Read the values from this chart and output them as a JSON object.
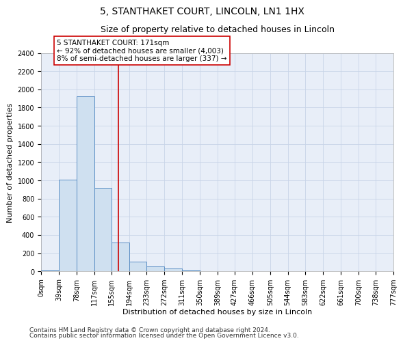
{
  "title": "5, STANTHAKET COURT, LINCOLN, LN1 1HX",
  "subtitle": "Size of property relative to detached houses in Lincoln",
  "xlabel": "Distribution of detached houses by size in Lincoln",
  "ylabel": "Number of detached properties",
  "bar_left_edges": [
    0,
    39,
    78,
    117,
    155,
    194,
    233,
    272,
    311,
    350,
    389,
    427,
    466,
    505,
    544,
    583,
    622,
    661,
    700,
    738
  ],
  "bar_heights": [
    20,
    1010,
    1920,
    920,
    315,
    105,
    55,
    35,
    20,
    0,
    0,
    0,
    0,
    0,
    0,
    0,
    0,
    0,
    0,
    0
  ],
  "bin_width": 39,
  "bar_color": "#cfe0f0",
  "bar_edge_color": "#5b8ec4",
  "grid_color": "#c8d4e8",
  "background_color": "#e8eef8",
  "red_line_x": 171,
  "annotation_text": "5 STANTHAKET COURT: 171sqm\n← 92% of detached houses are smaller (4,003)\n8% of semi-detached houses are larger (337) →",
  "annotation_box_color": "#ffffff",
  "annotation_border_color": "#cc0000",
  "ylim": [
    0,
    2400
  ],
  "yticks": [
    0,
    200,
    400,
    600,
    800,
    1000,
    1200,
    1400,
    1600,
    1800,
    2000,
    2200,
    2400
  ],
  "tick_labels": [
    "0sqm",
    "39sqm",
    "78sqm",
    "117sqm",
    "155sqm",
    "194sqm",
    "233sqm",
    "272sqm",
    "311sqm",
    "350sqm",
    "389sqm",
    "427sqm",
    "466sqm",
    "505sqm",
    "544sqm",
    "583sqm",
    "622sqm",
    "661sqm",
    "700sqm",
    "738sqm",
    "777sqm"
  ],
  "footnote1": "Contains HM Land Registry data © Crown copyright and database right 2024.",
  "footnote2": "Contains public sector information licensed under the Open Government Licence v3.0.",
  "title_fontsize": 10,
  "subtitle_fontsize": 9,
  "axis_label_fontsize": 8,
  "tick_fontsize": 7,
  "annotation_fontsize": 7.5,
  "footnote_fontsize": 6.5
}
